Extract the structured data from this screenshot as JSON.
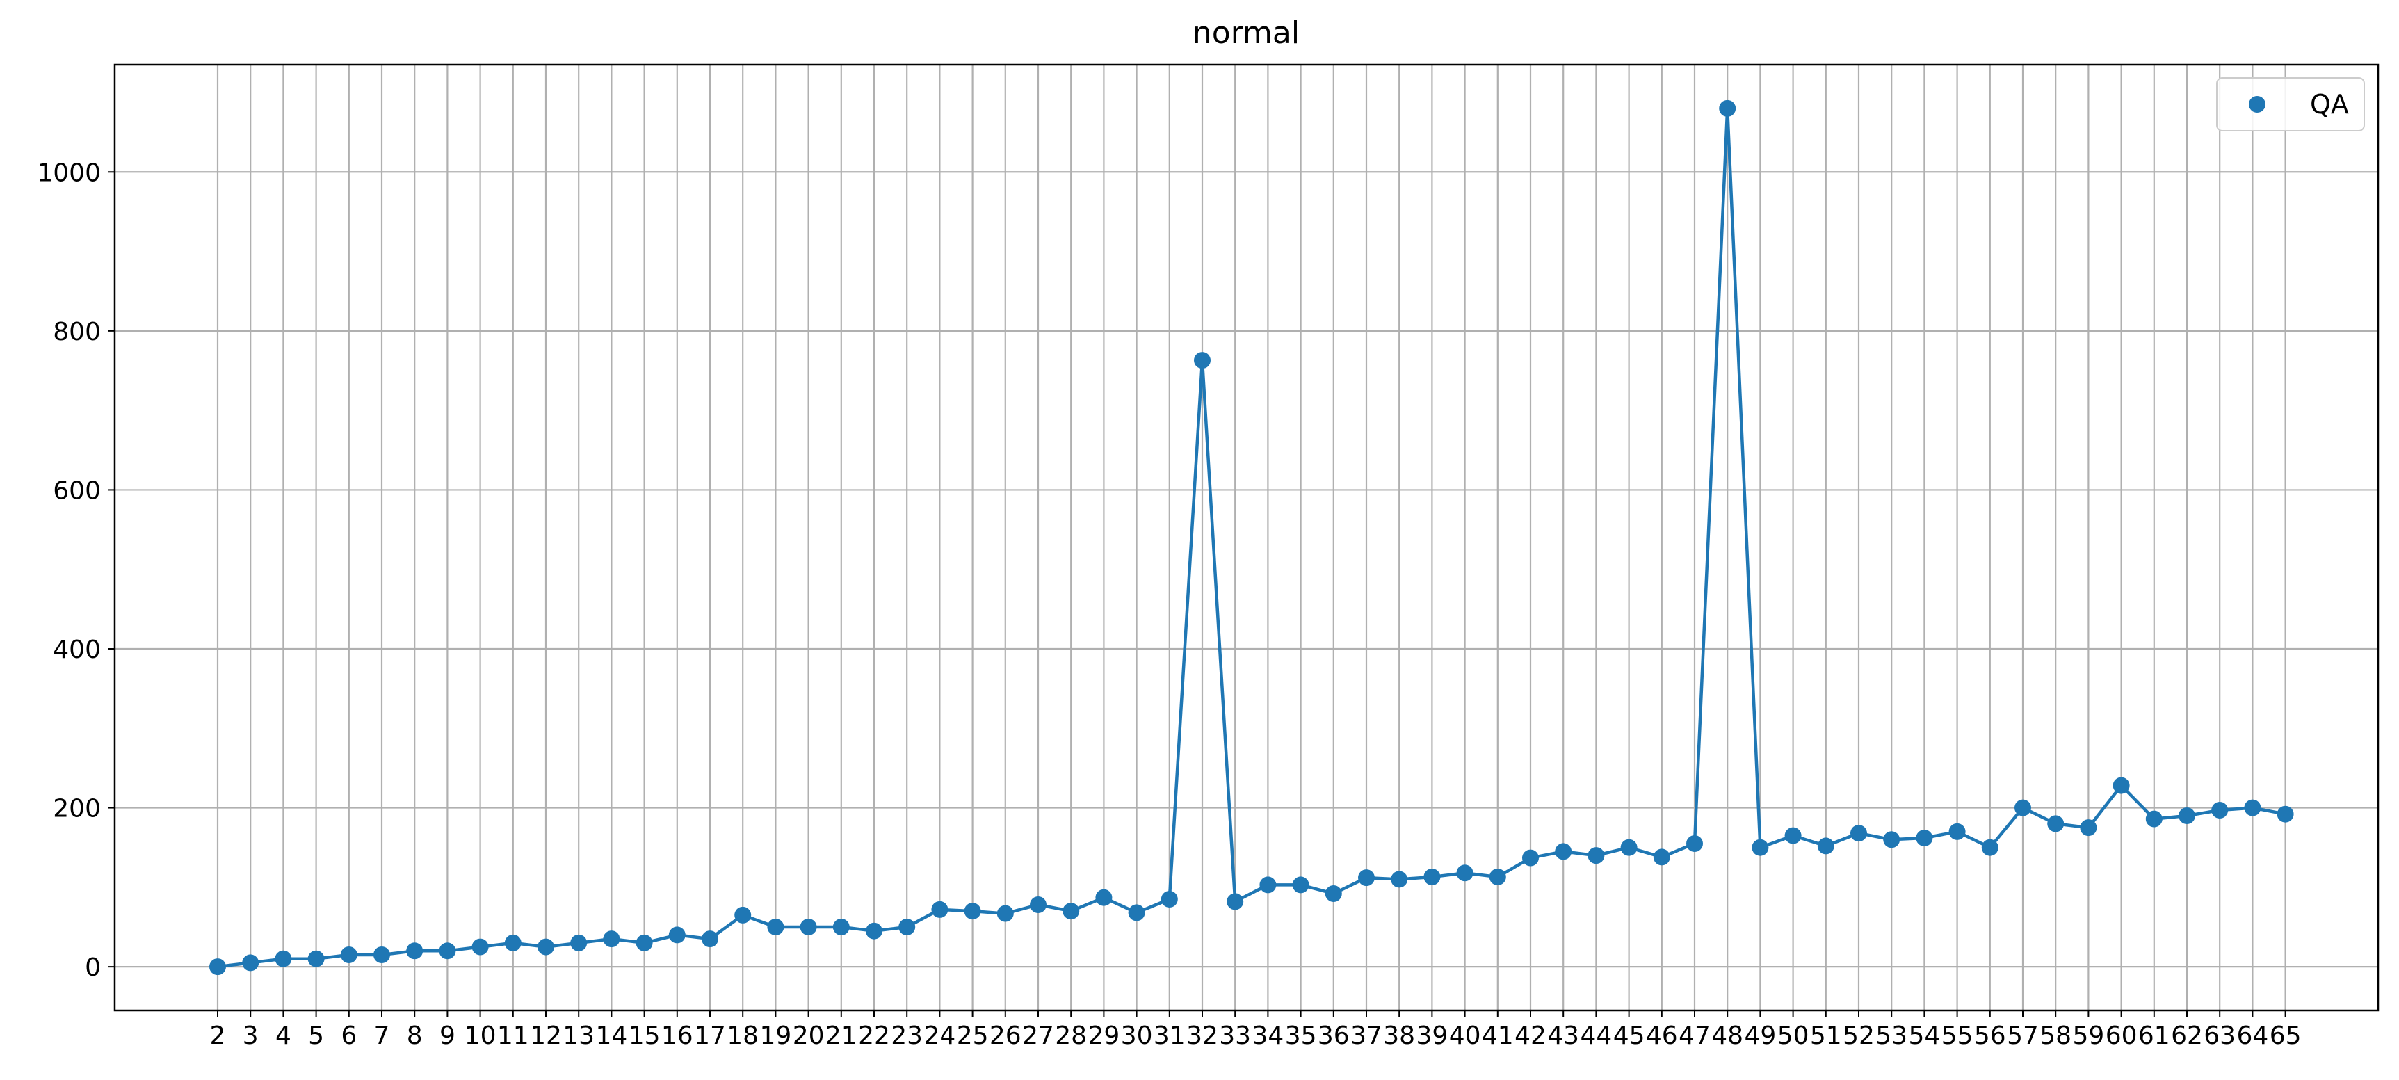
{
  "chart_data": {
    "type": "line",
    "title": "normal",
    "xlabel": "",
    "ylabel": "",
    "categories": [
      "2",
      "3",
      "4",
      "5",
      "6",
      "7",
      "8",
      "9",
      "10",
      "11",
      "12",
      "13",
      "14",
      "15",
      "16",
      "17",
      "18",
      "19",
      "20",
      "21",
      "22",
      "23",
      "24",
      "25",
      "26",
      "27",
      "28",
      "29",
      "30",
      "31",
      "32",
      "33",
      "34",
      "35",
      "36",
      "37",
      "38",
      "39",
      "40",
      "41",
      "42",
      "43",
      "44",
      "45",
      "46",
      "47",
      "48",
      "49",
      "50",
      "51",
      "52",
      "53",
      "54",
      "55",
      "56",
      "57",
      "58",
      "59",
      "60",
      "61",
      "62",
      "63",
      "64",
      "65"
    ],
    "series": [
      {
        "name": "QA",
        "color": "#1f77b4",
        "values": [
          0,
          5,
          10,
          10,
          15,
          15,
          20,
          20,
          25,
          30,
          25,
          30,
          35,
          30,
          40,
          35,
          65,
          50,
          50,
          50,
          45,
          50,
          72,
          70,
          67,
          78,
          70,
          87,
          68,
          85,
          763,
          82,
          103,
          103,
          92,
          112,
          110,
          113,
          118,
          113,
          137,
          145,
          140,
          150,
          138,
          155,
          1080,
          150,
          165,
          152,
          168,
          160,
          162,
          170,
          150,
          200,
          180,
          175,
          228,
          186,
          190,
          197,
          200,
          192
        ]
      }
    ],
    "ylim": [
      -55,
      1135
    ],
    "yticks": [
      0,
      200,
      400,
      600,
      800,
      1000
    ],
    "grid": true,
    "legend": {
      "position": "top-right",
      "entries": [
        "QA"
      ]
    }
  }
}
